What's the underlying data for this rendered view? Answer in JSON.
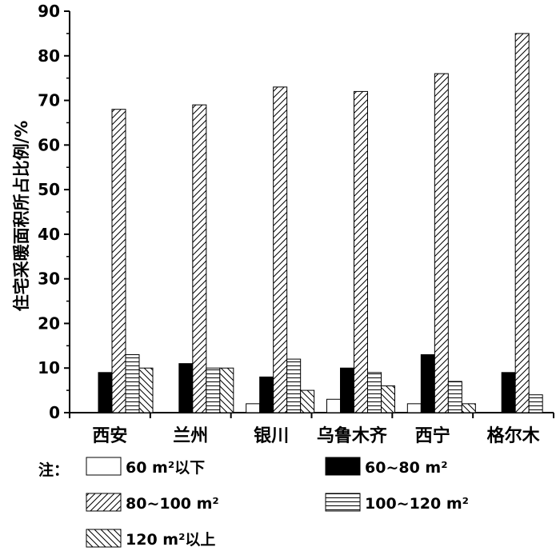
{
  "chart_data": {
    "type": "bar",
    "title": "",
    "xlabel": "",
    "ylabel": "住宅采暖面积所占比例/%",
    "ylim": [
      0,
      90
    ],
    "yticks": [
      "0",
      "10",
      "20",
      "30",
      "40",
      "50",
      "60",
      "70",
      "80",
      "90"
    ],
    "categories": [
      "西安",
      "兰州",
      "银川",
      "乌鲁木齐",
      "西宁",
      "格尔木"
    ],
    "legend_prefix": "注：",
    "legend_position": "bottom",
    "series": [
      {
        "name": "60 m²以下",
        "pattern": "white",
        "values": [
          0,
          0,
          2,
          3,
          2,
          0
        ]
      },
      {
        "name": "60~80 m²",
        "pattern": "black",
        "values": [
          9,
          11,
          8,
          10,
          13,
          9
        ]
      },
      {
        "name": "80~100 m²",
        "pattern": "forward-hatch",
        "values": [
          68,
          69,
          73,
          72,
          76,
          85
        ]
      },
      {
        "name": "100~120 m²",
        "pattern": "horizontal-hatch",
        "values": [
          13,
          10,
          12,
          9,
          7,
          4
        ]
      },
      {
        "name": "120 m²以上",
        "pattern": "back-hatch",
        "values": [
          10,
          10,
          5,
          6,
          2,
          0
        ]
      }
    ]
  }
}
